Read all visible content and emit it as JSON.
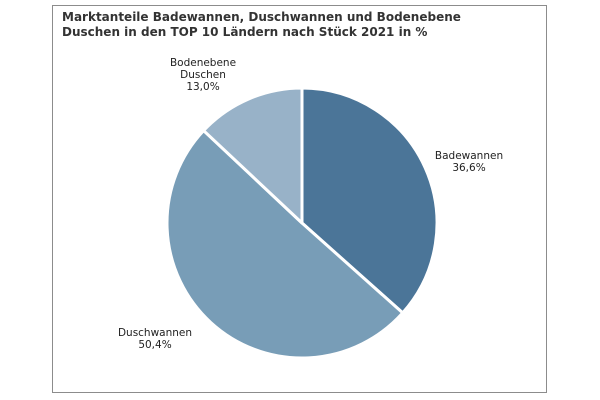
{
  "chart_data": {
    "type": "pie",
    "title_lines": [
      "Marktanteile Badewannen, Duschwannen und Bodenebene",
      "Duschen in den TOP 10 Ländern nach Stück 2021 in %"
    ],
    "slices": [
      {
        "name": "Badewannen",
        "label_lines": [
          "Badewannen"
        ],
        "value": 36.6,
        "value_label": "36,6%",
        "color": "#4b7598"
      },
      {
        "name": "Duschwannen",
        "label_lines": [
          "Duschwannen"
        ],
        "value": 50.4,
        "value_label": "50,4%",
        "color": "#789db7"
      },
      {
        "name": "Bodenebene Duschen",
        "label_lines": [
          "Bodenebene",
          "Duschen"
        ],
        "value": 13.0,
        "value_label": "13,0%",
        "color": "#98b2c8"
      }
    ],
    "start": "12 o'clock",
    "direction": "clockwise",
    "legend": "none"
  }
}
